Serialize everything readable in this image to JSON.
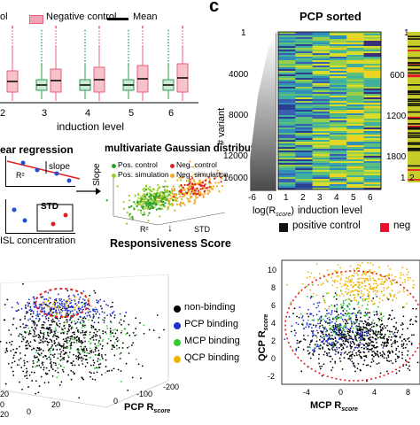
{
  "panel_c_label": "c",
  "box_panel": {
    "legend": {
      "positive_partial": "ol",
      "negative": "Negative control",
      "mean": "Mean"
    },
    "x_ticks": [
      "2",
      "3",
      "4",
      "5",
      "6"
    ],
    "xlabel": "induction level",
    "colors": {
      "positive": "#2e9e50",
      "negative": "#e8607a"
    }
  },
  "regression_panel": {
    "title_partial": "ear regression",
    "labels": {
      "r2": "R²",
      "slope": "slope",
      "std": "STD"
    },
    "xlabel_partial": "ISL concentration"
  },
  "gaussian_panel": {
    "title": "multivariate Gaussian distribution",
    "legend": [
      "Pos. control",
      "Neg. control",
      "Pos. simulation",
      "Neg. simulation"
    ],
    "ylabel": "Slope",
    "axis_r2": "R²",
    "axis_std": "STD",
    "arrow": "↓",
    "result": "Responsiveness Score",
    "colors": {
      "pos_control": "#2ca02c",
      "neg_control": "#d62728",
      "pos_sim": "#9acd32",
      "neg_sim": "#f5a623"
    }
  },
  "pcp_panel": {
    "title": "PCP sorted",
    "y_ticks": [
      "1",
      "4000",
      "8000",
      "12000",
      "16000"
    ],
    "ylabel": "# variant",
    "x_ticks": [
      "1",
      "2",
      "3",
      "4",
      "5",
      "6"
    ],
    "xlabel": "induction level",
    "logr_ticks": [
      "-6",
      "0"
    ],
    "logr_label": "log(R",
    "logr_sub": "score",
    "logr_close": ")",
    "right_y_ticks": [
      "1",
      "600",
      "1200",
      "1800"
    ],
    "right_x_ticks": [
      "1",
      "2"
    ],
    "legend": {
      "positive": "positive control",
      "negative_partial": "neg"
    },
    "colors": {
      "positive": "#111111",
      "negative": "#e8102a"
    }
  },
  "scatter3d_panel": {
    "legend": [
      "non-binding",
      "PCP binding",
      "MCP binding",
      "QCP binding"
    ],
    "colors": [
      "#000000",
      "#1f2fd0",
      "#33cc33",
      "#f0b400"
    ],
    "x_ticks": [
      "-200",
      "-100",
      "0",
      "20",
      "0"
    ],
    "xlabel": "PCP R",
    "xlabel_sub": "score",
    "corner_ticks": [
      "20",
      "0",
      "20"
    ]
  },
  "scatter2d_panel": {
    "ylabel": "QCP R",
    "ylabel_sub": "score",
    "y_ticks": [
      "10",
      "8",
      "6",
      "4",
      "2",
      "0",
      "-2"
    ],
    "x_ticks": [
      "-4",
      "0",
      "4",
      "8"
    ],
    "xlabel": "MCP R",
    "xlabel_sub": "score"
  }
}
